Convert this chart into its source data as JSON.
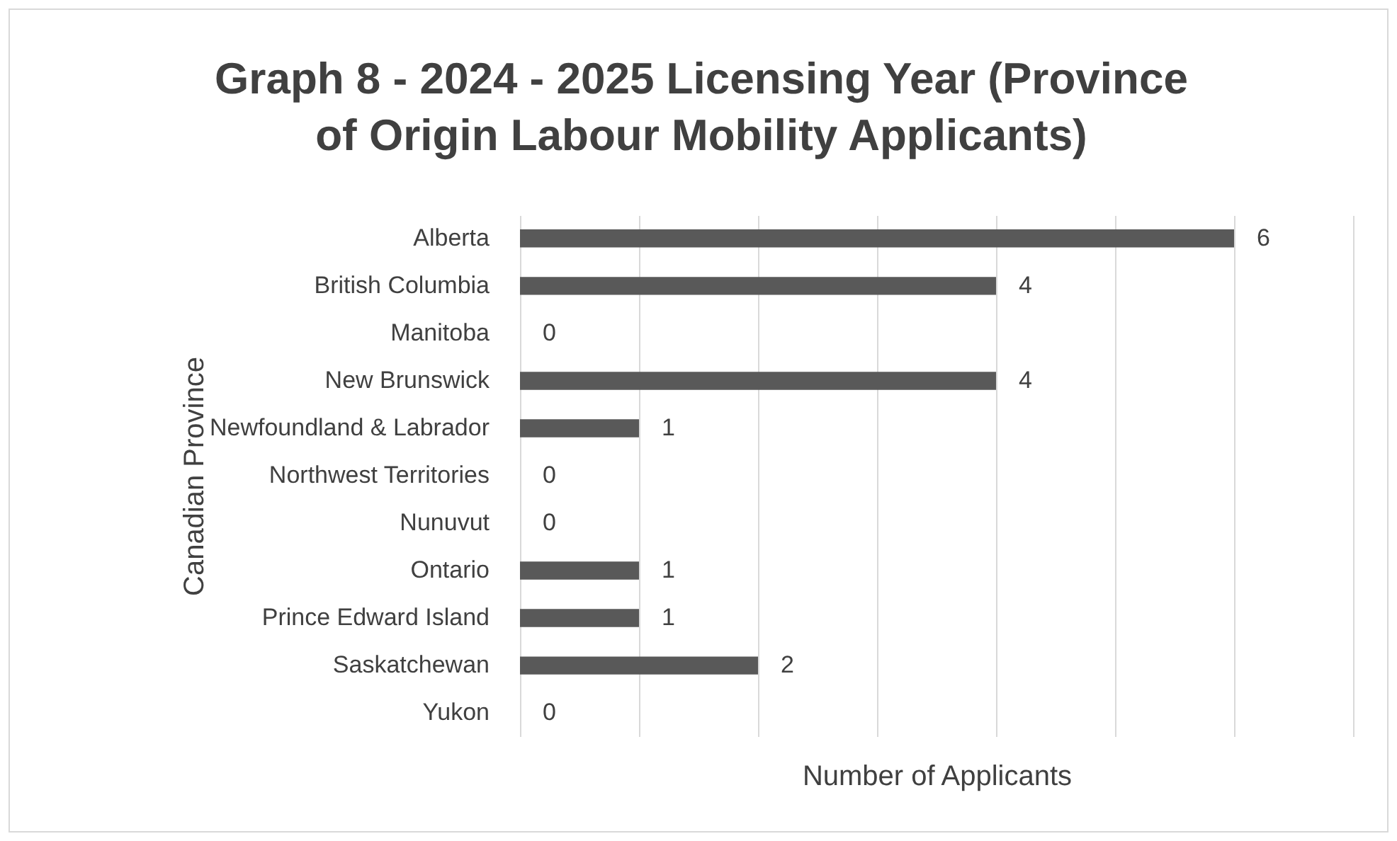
{
  "chart_data": {
    "type": "bar",
    "orientation": "horizontal",
    "title": "Graph 8 - 2024 - 2025 Licensing Year (Province of Origin Labour Mobility Applicants)",
    "xlabel": "Number of Applicants",
    "ylabel": "Canadian Province",
    "categories": [
      "Alberta",
      "British Columbia",
      "Manitoba",
      "New Brunswick",
      "Newfoundland & Labrador",
      "Northwest Territories",
      "Nunuvut",
      "Ontario",
      "Prince Edward Island",
      "Saskatchewan",
      "Yukon"
    ],
    "values": [
      6,
      4,
      0,
      4,
      1,
      0,
      0,
      1,
      1,
      2,
      0
    ],
    "color": "#595959",
    "data_labels": true,
    "xlim": [
      0,
      7
    ],
    "xticks": [
      {
        "value": 0,
        "label": null
      },
      {
        "value": 1,
        "label": null
      },
      {
        "value": 2,
        "label": null
      },
      {
        "value": 3,
        "label": null
      },
      {
        "value": 4,
        "label": null
      },
      {
        "value": 5,
        "label": null
      },
      {
        "value": 6,
        "label": null
      },
      {
        "value": 7,
        "label": null
      }
    ],
    "grid": "x",
    "tick_labels": "y"
  }
}
